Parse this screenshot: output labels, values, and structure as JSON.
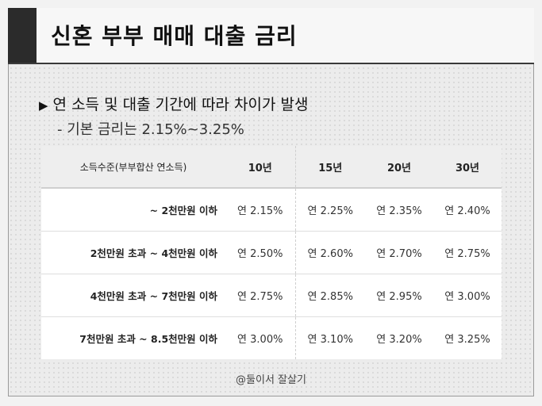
{
  "title": "신혼 부부 매매 대출 금리",
  "headline": "연 소득 및 대출 기간에 따라 차이가 발생",
  "subline": "- 기본 금리는 2.15%~3.25%",
  "table": {
    "header": {
      "income": "소득수준(부부합산 연소득)",
      "periods": [
        "10년",
        "15년",
        "20년",
        "30년"
      ]
    },
    "rows": [
      {
        "range": "~ 2천만원 이하",
        "rates": [
          "연 2.15%",
          "연 2.25%",
          "연 2.35%",
          "연 2.40%"
        ]
      },
      {
        "range": "2천만원 초과  ~ 4천만원 이하",
        "rates": [
          "연 2.50%",
          "연 2.60%",
          "연 2.70%",
          "연 2.75%"
        ]
      },
      {
        "range": "4천만원 초과  ~ 7천만원 이하",
        "rates": [
          "연 2.75%",
          "연 2.85%",
          "연 2.95%",
          "연 3.00%"
        ]
      },
      {
        "range": "7천만원 초과  ~ 8.5천만원 이하",
        "rates": [
          "연 3.00%",
          "연 3.10%",
          "연 3.20%",
          "연 3.25%"
        ]
      }
    ]
  },
  "footer": "@둘이서 잘살기"
}
